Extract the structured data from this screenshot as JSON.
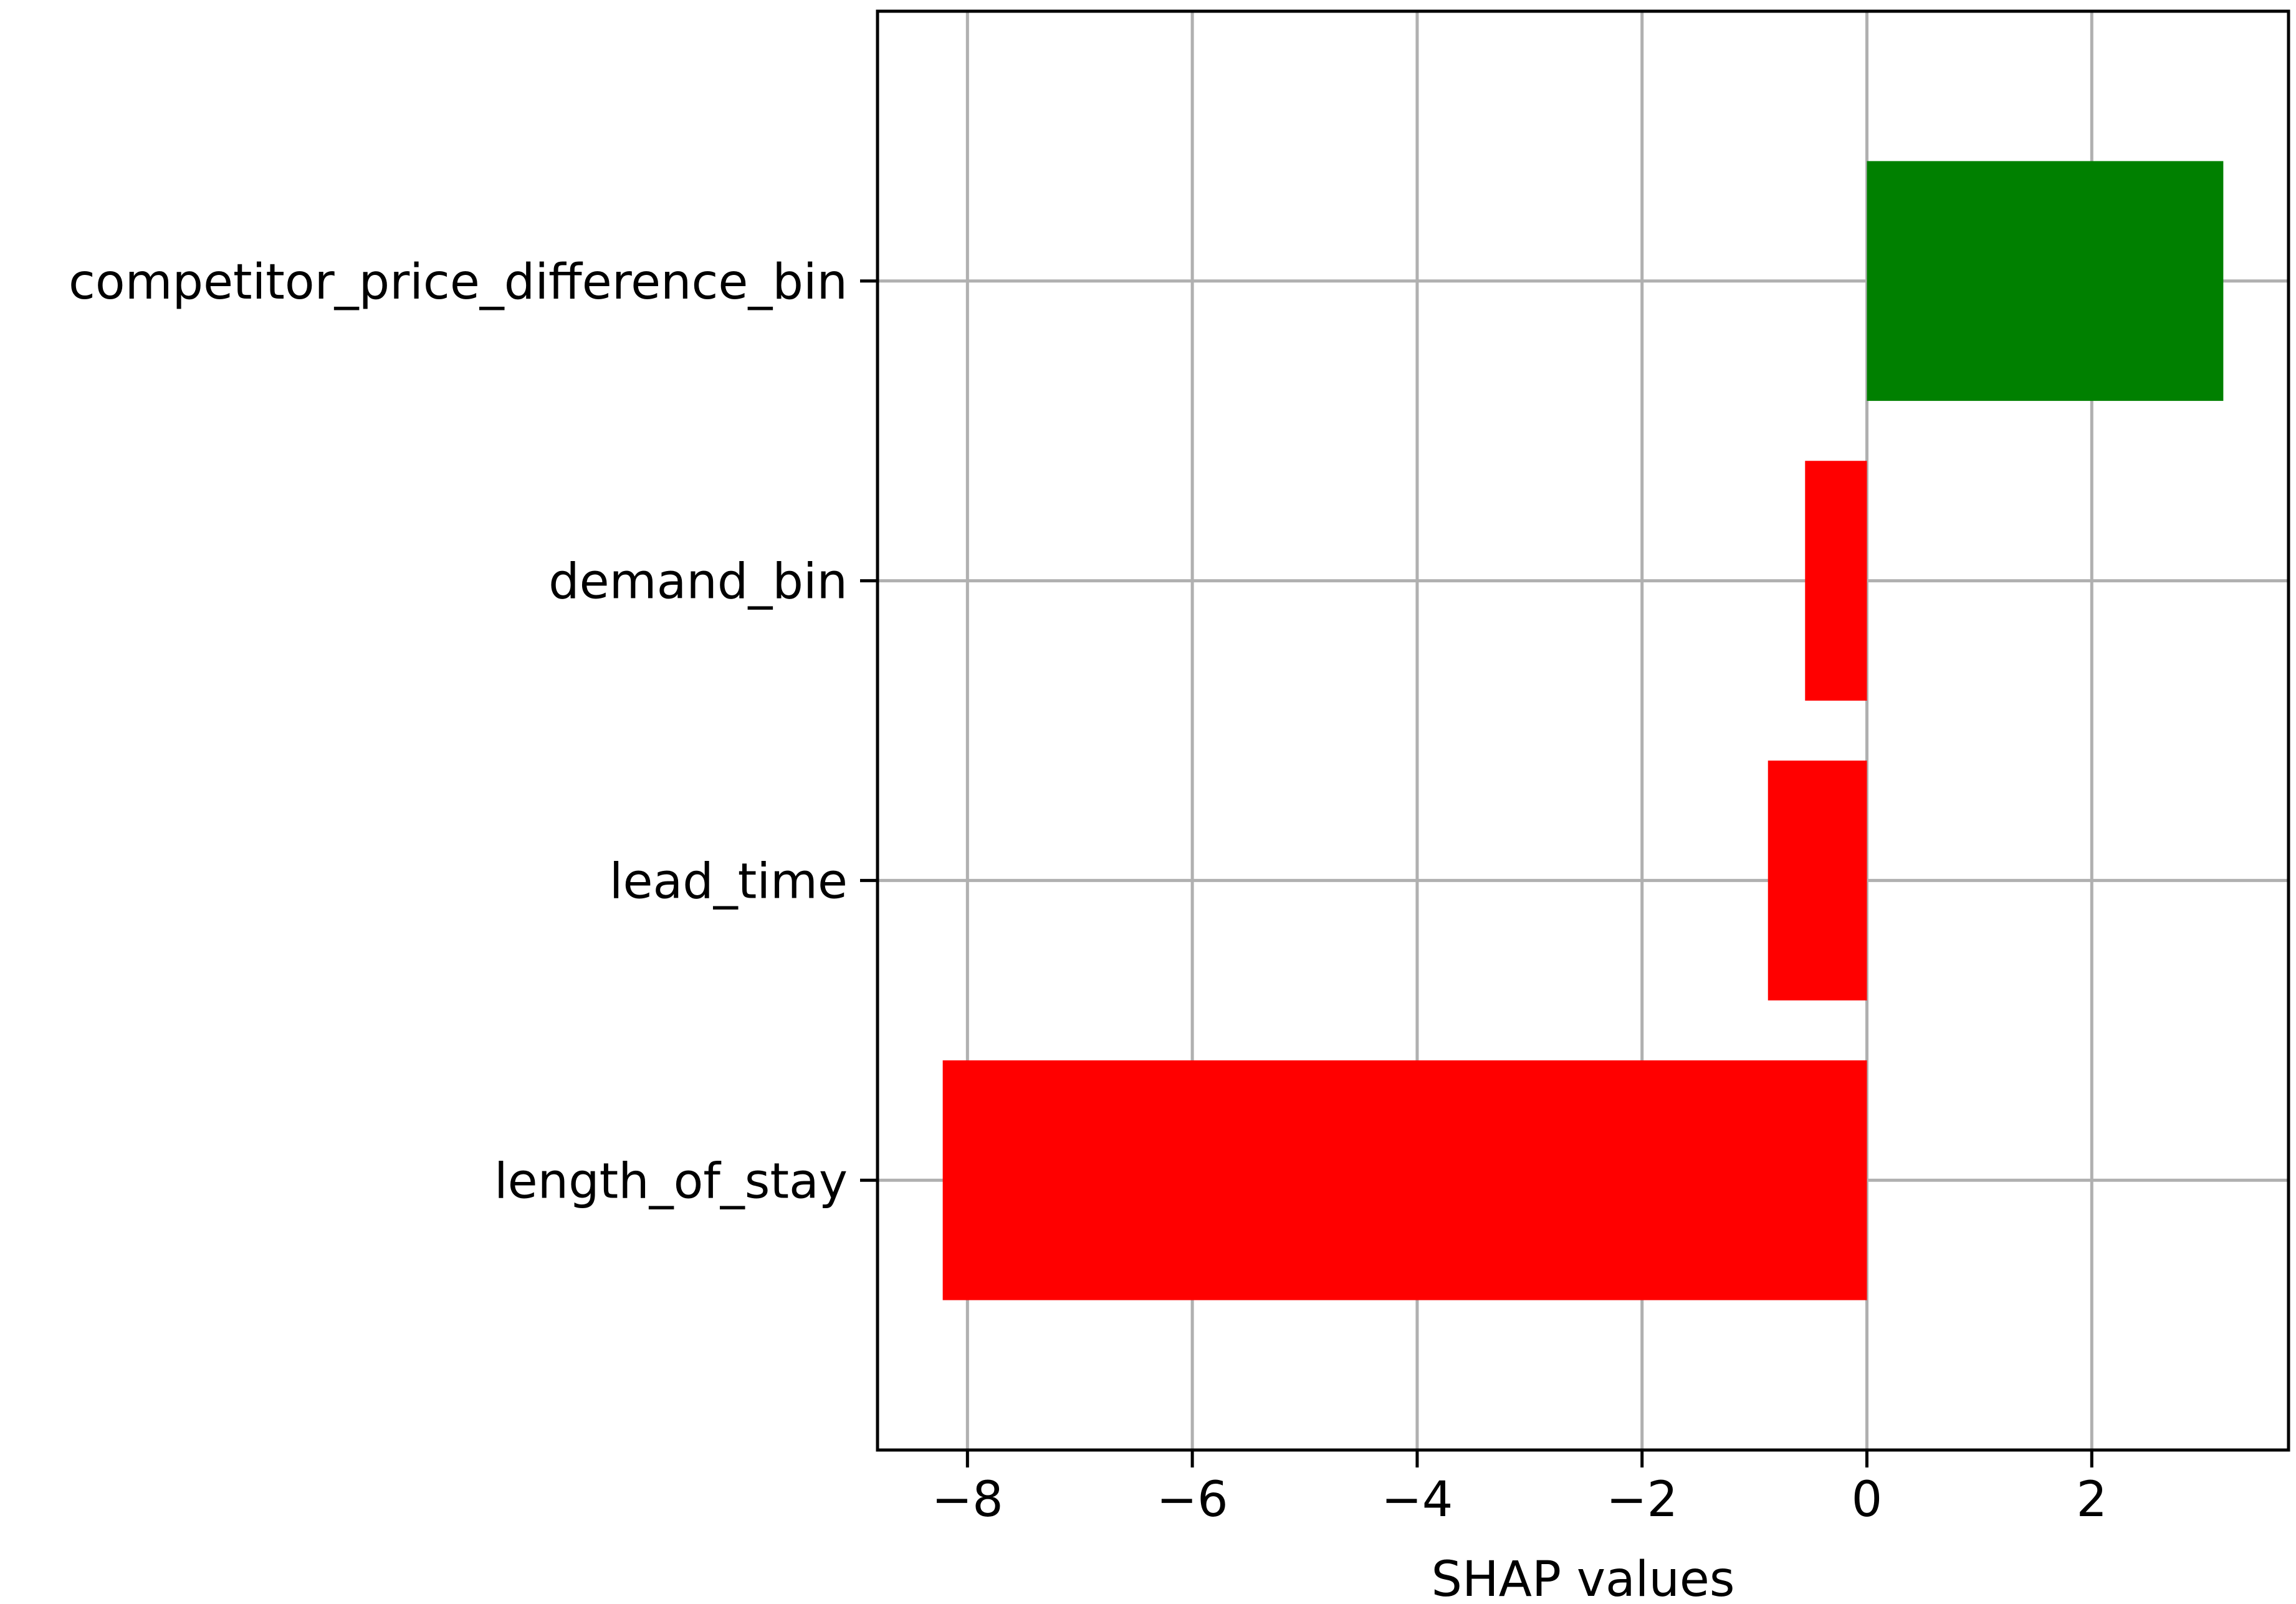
{
  "chart_data": {
    "type": "bar",
    "orientation": "horizontal",
    "title": "",
    "xlabel": "SHAP values",
    "ylabel": "",
    "categories": [
      "competitor_price_difference_bin",
      "demand_bin",
      "lead_time",
      "length_of_stay"
    ],
    "values": [
      3.17,
      -0.55,
      -0.88,
      -8.22
    ],
    "bar_colors": [
      "#008000",
      "#ff0000",
      "#ff0000",
      "#ff0000"
    ],
    "xlim": [
      -8.8,
      3.75
    ],
    "xticks": [
      -8,
      -6,
      -4,
      -2,
      0,
      2
    ],
    "xtick_labels": [
      "−8",
      "−6",
      "−4",
      "−2",
      "0",
      "2"
    ],
    "grid": true
  }
}
